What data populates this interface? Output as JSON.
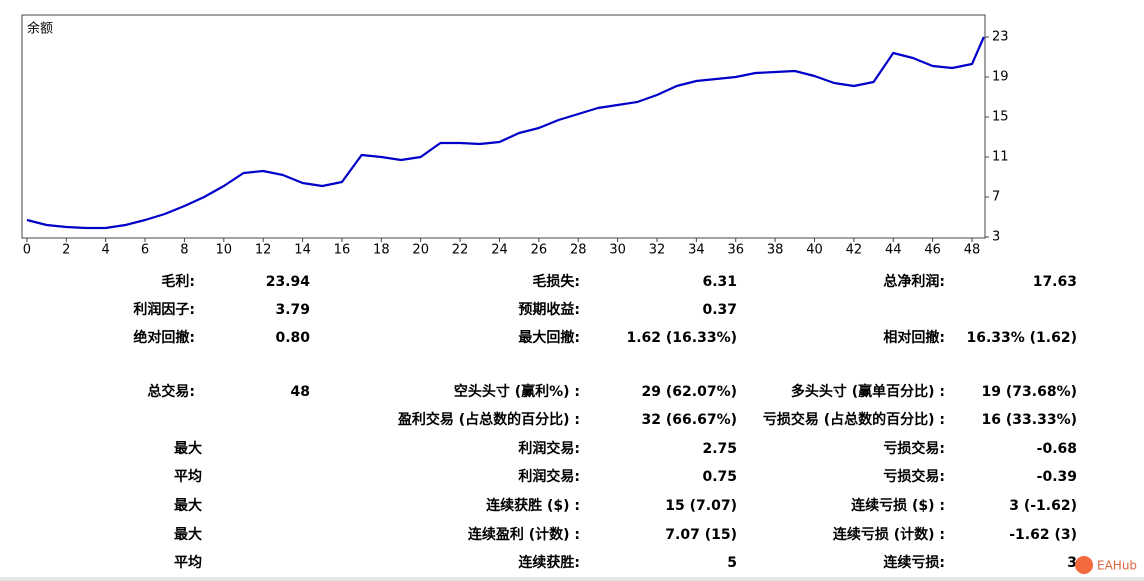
{
  "chart_data": {
    "type": "line",
    "title": "余额",
    "x": [
      0,
      1,
      2,
      3,
      4,
      5,
      6,
      7,
      8,
      9,
      10,
      11,
      12,
      13,
      14,
      15,
      16,
      17,
      18,
      19,
      20,
      21,
      22,
      23,
      24,
      25,
      26,
      27,
      28,
      29,
      30,
      31,
      32,
      33,
      34,
      35,
      36,
      37,
      38,
      39,
      40,
      41,
      42,
      43,
      44,
      45,
      46,
      47,
      48,
      48.6
    ],
    "series": [
      {
        "color": "#0000c8",
        "values": [
          4.7,
          4.2,
          4.0,
          3.9,
          3.9,
          4.2,
          4.7,
          5.3,
          6.1,
          7.0,
          8.1,
          9.4,
          9.6,
          9.2,
          8.4,
          8.1,
          8.5,
          11.2,
          11.0,
          10.7,
          11.0,
          12.4,
          12.4,
          12.3,
          12.5,
          13.4,
          13.9,
          14.7,
          15.3,
          15.9,
          16.2,
          16.5,
          17.2,
          18.1,
          18.6,
          18.8,
          19.0,
          19.4,
          19.5,
          19.6,
          19.1,
          18.4,
          18.1,
          18.5,
          21.4,
          20.9,
          20.1,
          19.9,
          20.3,
          23.0
        ]
      }
    ],
    "xlim": [
      -0.25,
      48.66
    ],
    "xticks": [
      0,
      2,
      4,
      6,
      8,
      10,
      12,
      14,
      16,
      18,
      20,
      22,
      24,
      26,
      28,
      30,
      32,
      34,
      36,
      38,
      40,
      42,
      44,
      46,
      48
    ],
    "ylim": [
      2.9,
      25.2
    ],
    "yticks": [
      3,
      7,
      11,
      15,
      19,
      23
    ],
    "y_axis_side": "right",
    "grid": false
  },
  "stats": {
    "rows": [
      [
        "毛利:",
        "23.94",
        "毛损失:",
        "6.31",
        "总净利润:",
        "17.63"
      ],
      [
        "利润因子:",
        "3.79",
        "预期收益:",
        "0.37",
        null,
        null
      ],
      [
        "绝对回撤:",
        "0.80",
        "最大回撤:",
        "1.62 (16.33%)",
        "相对回撤:",
        "16.33% (1.62)"
      ],
      [
        "总交易:",
        "48",
        "空头头寸 (赢利%) :",
        "29 (62.07%)",
        "多头头寸 (赢单百分比) :",
        "19 (73.68%)"
      ],
      [
        null,
        null,
        "盈利交易 (占总数的百分比) :",
        "32 (66.67%)",
        "亏损交易 (占总数的百分比) :",
        "16 (33.33%)"
      ],
      [
        "最大",
        null,
        "利润交易:",
        "2.75",
        "亏损交易:",
        "-0.68"
      ],
      [
        "平均",
        null,
        "利润交易:",
        "0.75",
        "亏损交易:",
        "-0.39"
      ],
      [
        "最大",
        null,
        "连续获胜 ($) :",
        "15 (7.07)",
        "连续亏损 ($) :",
        "3 (-1.62)"
      ],
      [
        "最大",
        null,
        "连续盈利 (计数) :",
        "7.07 (15)",
        "连续亏损 (计数) :",
        "-1.62 (3)"
      ],
      [
        "平均",
        null,
        "连续获胜:",
        "5",
        "连续亏损:",
        "3"
      ]
    ]
  },
  "watermark": "EAHub"
}
